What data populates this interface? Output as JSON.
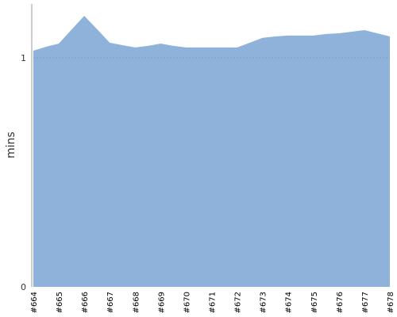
{
  "chart_data": {
    "type": "area",
    "y_label": "mins",
    "categories": [
      "#664",
      null,
      "#665",
      null,
      "#666",
      null,
      "#667",
      null,
      "#668",
      null,
      "#669",
      null,
      "#670",
      null,
      "#671",
      null,
      "#672",
      null,
      "#673",
      null,
      "#674",
      null,
      "#675",
      null,
      "#676",
      null,
      "#677",
      null,
      "#678"
    ],
    "values": [
      1.031,
      1.048,
      1.062,
      1.123,
      1.183,
      1.125,
      1.066,
      1.055,
      1.045,
      1.052,
      1.062,
      1.052,
      1.045,
      1.045,
      1.045,
      1.045,
      1.045,
      1.066,
      1.087,
      1.093,
      1.097,
      1.097,
      1.097,
      1.104,
      1.107,
      1.114,
      1.121,
      1.107,
      1.093
    ],
    "color": "#8fb2da",
    "ylim": [
      0,
      1.235
    ],
    "yticks": [
      0,
      1
    ],
    "grid": true
  }
}
